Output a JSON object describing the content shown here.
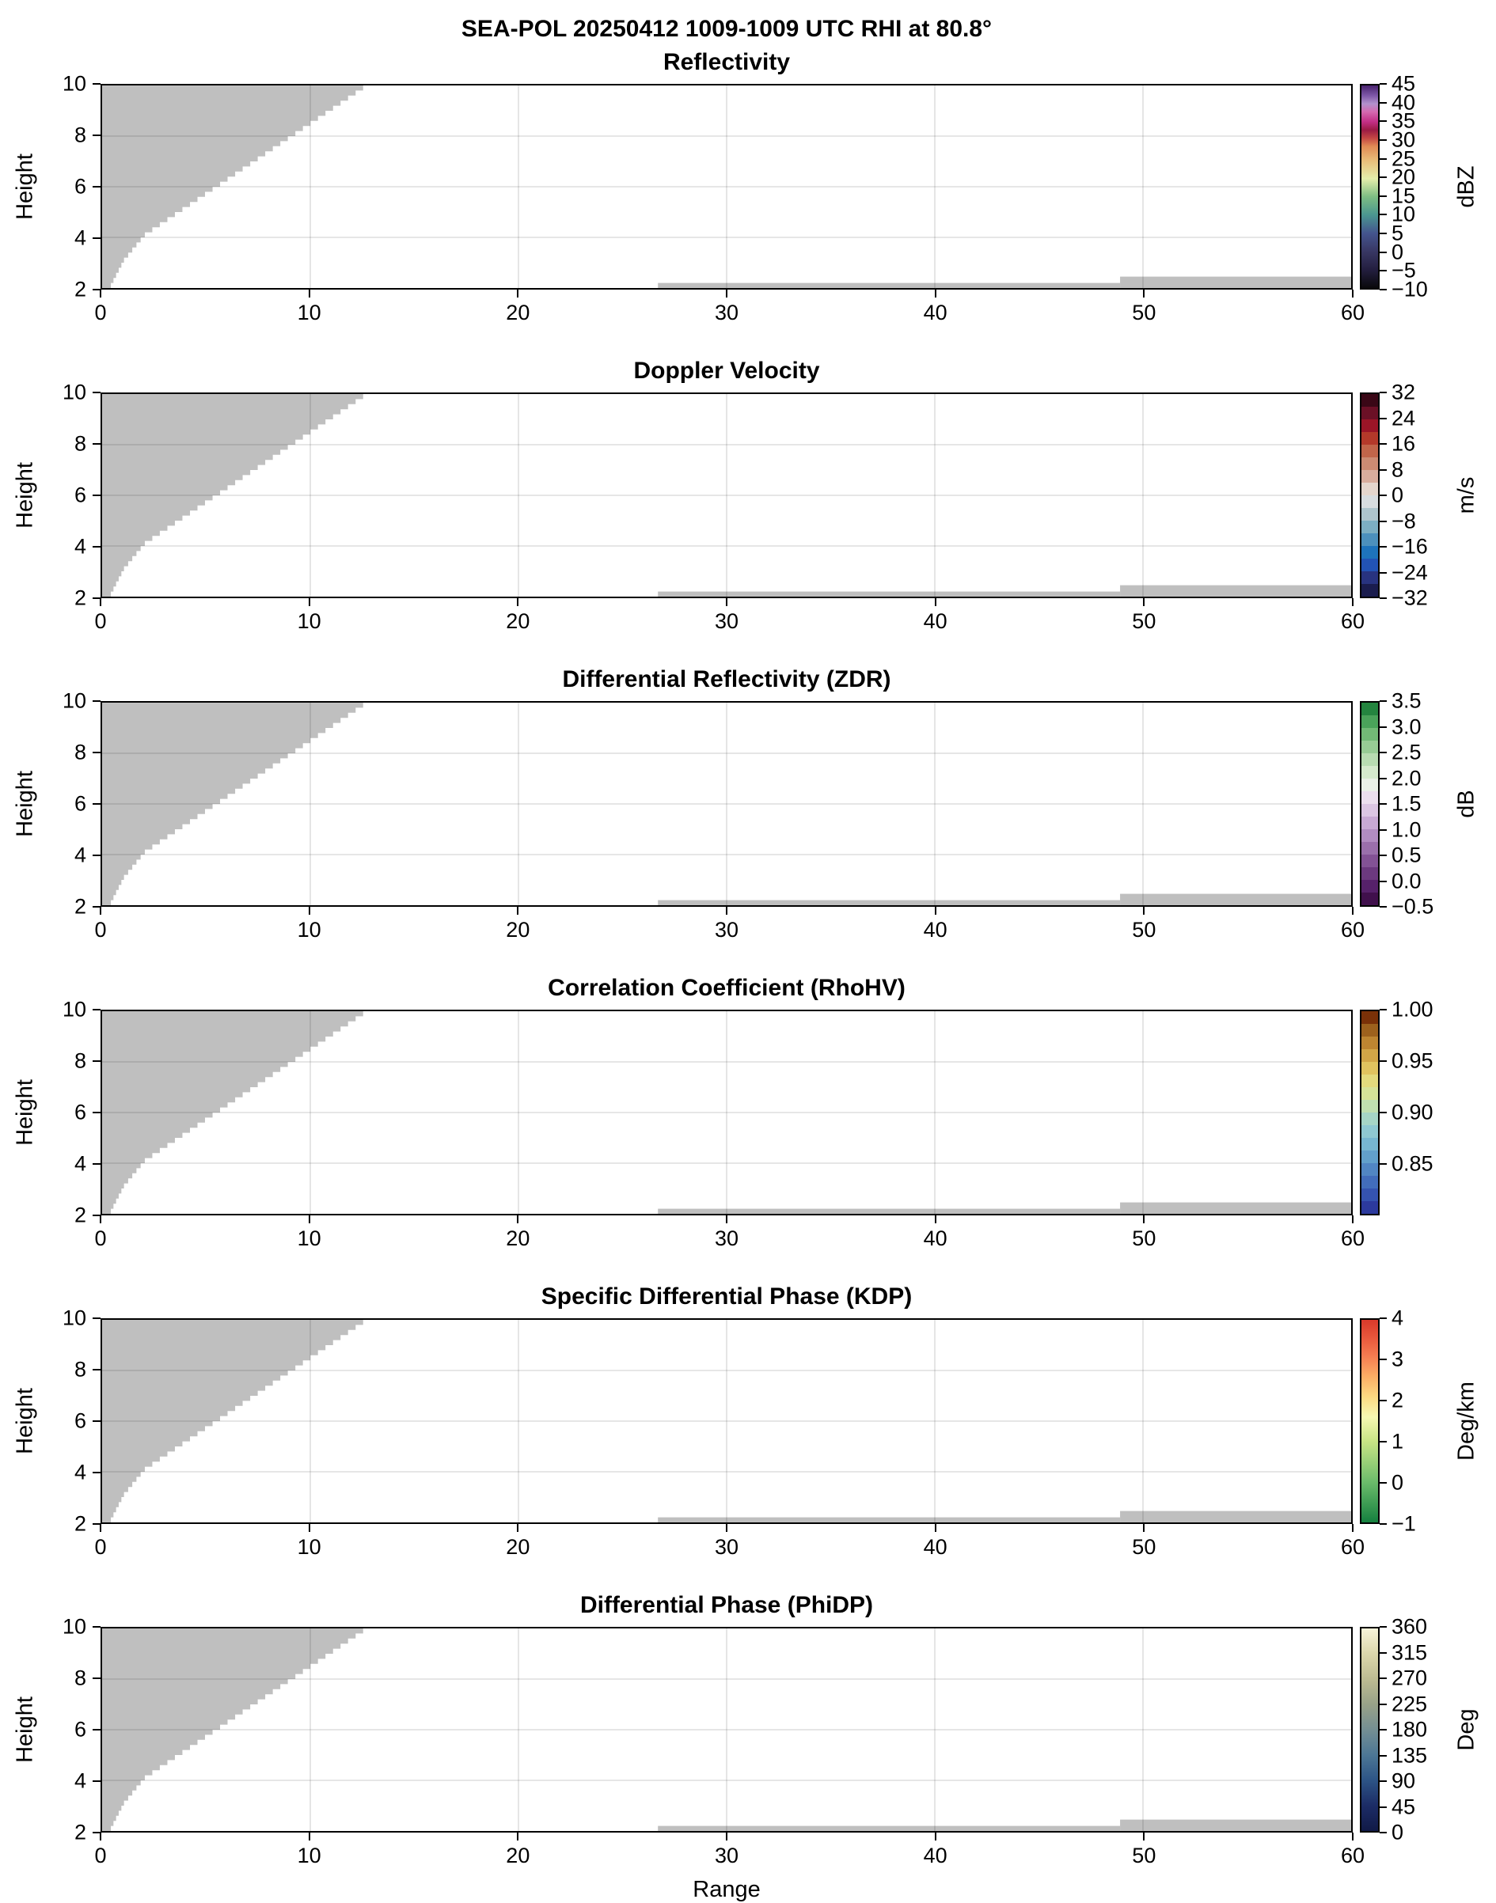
{
  "chart_data": {
    "type": "heatmap",
    "title": "SEA-POL 20250412 1009-1009 UTC RHI at 80.8°",
    "xlabel": "Range",
    "ylabel": "Height",
    "x_range": [
      0,
      60
    ],
    "y_range": [
      2,
      10
    ],
    "x_ticks": [
      "0",
      "10",
      "20",
      "30",
      "40",
      "50",
      "60"
    ],
    "x_tick_values": [
      0,
      10,
      20,
      30,
      40,
      50,
      60
    ],
    "y_ticks": [
      "2",
      "4",
      "6",
      "8",
      "10"
    ],
    "y_tick_values": [
      2,
      4,
      6,
      8,
      10
    ],
    "grid_x_values": [
      10,
      20,
      30,
      40,
      50
    ],
    "grid_y_values": [
      4,
      6,
      8
    ],
    "note": "Six-panel RHI display; all panels show only a gray no-data mask (stepped wedge from x=0..12.9 rising from height 2 to 10, plus low strips near height 2 from x=26.7-48.9 and x=48.9-60). No echo values plotted.",
    "mask": {
      "color": "#bfbfbf",
      "wedge_boundary_anchors": [
        [
          0.42,
          2.0
        ],
        [
          1.05,
          3.0
        ],
        [
          2.05,
          4.0
        ],
        [
          12.9,
          10.0
        ]
      ],
      "wedge_step_h": 0.2,
      "strips": [
        {
          "x0": 26.7,
          "h0": 2.0,
          "x1": 48.9,
          "h1": 2.2
        },
        {
          "x0": 48.9,
          "h0": 2.0,
          "x1": 60.0,
          "h1": 2.45
        }
      ]
    },
    "panels": [
      {
        "title": "Reflectivity",
        "unit": "dBZ",
        "cbar_min": -10,
        "cbar_max": 45,
        "tick_values": [
          -10,
          -5,
          0,
          5,
          10,
          15,
          20,
          25,
          30,
          35,
          40,
          45
        ],
        "tick_labels": [
          "−10",
          "−5",
          "0",
          "5",
          "10",
          "15",
          "20",
          "25",
          "30",
          "35",
          "40",
          "45"
        ],
        "gradient": {
          "style": "smooth",
          "stops": [
            [
              0,
              "#09090b"
            ],
            [
              9,
              "#231e3f"
            ],
            [
              18,
              "#383763"
            ],
            [
              27,
              "#44548e"
            ],
            [
              36,
              "#4a9690"
            ],
            [
              45,
              "#7dbd83"
            ],
            [
              54,
              "#e4eeab"
            ],
            [
              63,
              "#e9bd79"
            ],
            [
              70,
              "#e08a55"
            ],
            [
              74,
              "#c44744"
            ],
            [
              78,
              "#9c1b45"
            ],
            [
              82,
              "#c22e85"
            ],
            [
              87,
              "#d56ab0"
            ],
            [
              91,
              "#b291cc"
            ],
            [
              95,
              "#7e57a8"
            ],
            [
              100,
              "#49236e"
            ]
          ]
        }
      },
      {
        "title": "Doppler Velocity",
        "unit": "m/s",
        "cbar_min": -32,
        "cbar_max": 32,
        "tick_values": [
          -32,
          -24,
          -16,
          -8,
          0,
          8,
          16,
          24,
          32
        ],
        "tick_labels": [
          "−32",
          "−24",
          "−16",
          "−8",
          "0",
          "8",
          "16",
          "24",
          "32"
        ],
        "gradient": {
          "style": "bands",
          "colors": [
            "#1a1c4e",
            "#283380",
            "#2253b5",
            "#1e73bc",
            "#4c90bd",
            "#7caec3",
            "#aec5cd",
            "#d8dde0",
            "#e5d6cd",
            "#d9ad9d",
            "#cc8b73",
            "#c1654a",
            "#b4392a",
            "#9b1527",
            "#6b1026",
            "#3a0716"
          ]
        }
      },
      {
        "title": "Differential Reflectivity (ZDR)",
        "unit": "dB",
        "cbar_min": -0.5,
        "cbar_max": 3.5,
        "tick_values": [
          -0.5,
          0.0,
          0.5,
          1.0,
          1.5,
          2.0,
          2.5,
          3.0,
          3.5
        ],
        "tick_labels": [
          "−0.5",
          "0.0",
          "0.5",
          "1.0",
          "1.5",
          "2.0",
          "2.5",
          "3.0",
          "3.5"
        ],
        "gradient": {
          "style": "bands",
          "colors": [
            "#40104c",
            "#56216a",
            "#6c397f",
            "#835295",
            "#9a6fab",
            "#b18cc1",
            "#c8a9d4",
            "#dcc6e3",
            "#ecdfee",
            "#eaf0e7",
            "#d5e9cd",
            "#b8dcb2",
            "#97cc95",
            "#72ba76",
            "#4aa35a",
            "#24853f"
          ]
        }
      },
      {
        "title": "Correlation Coefficient (RhoHV)",
        "unit": "",
        "cbar_min": 0.8,
        "cbar_max": 1.0,
        "tick_values": [
          0.85,
          0.9,
          0.95,
          1.0
        ],
        "tick_labels": [
          "0.85",
          "0.90",
          "0.95",
          "1.00"
        ],
        "gradient": {
          "style": "bands",
          "colors": [
            "#2c3a9d",
            "#3553b0",
            "#426dbb",
            "#5186c3",
            "#62a0cb",
            "#77b6d1",
            "#8fc8d2",
            "#a6d5c6",
            "#c0dfb0",
            "#d6e298",
            "#e3da7d",
            "#e0c35f",
            "#d2a647",
            "#bd8531",
            "#9d611d",
            "#7a3108"
          ]
        }
      },
      {
        "title": "Specific Differential Phase (KDP)",
        "unit": "Deg/km",
        "cbar_min": -1,
        "cbar_max": 4,
        "tick_values": [
          -1,
          0,
          1,
          2,
          3,
          4
        ],
        "tick_labels": [
          "−1",
          "0",
          "1",
          "2",
          "3",
          "4"
        ],
        "gradient": {
          "style": "smooth",
          "stops": [
            [
              0,
              "#15803f"
            ],
            [
              20,
              "#6cbc6b"
            ],
            [
              40,
              "#c8e585"
            ],
            [
              52,
              "#f6f8b2"
            ],
            [
              62,
              "#fdda82"
            ],
            [
              72,
              "#fcae65"
            ],
            [
              82,
              "#f67d51"
            ],
            [
              92,
              "#e7543a"
            ],
            [
              100,
              "#d93a2b"
            ]
          ]
        }
      },
      {
        "title": "Differential Phase (PhiDP)",
        "unit": "Deg",
        "cbar_min": 0,
        "cbar_max": 360,
        "tick_values": [
          0,
          45,
          90,
          135,
          180,
          225,
          270,
          315,
          360
        ],
        "tick_labels": [
          "0",
          "45",
          "90",
          "135",
          "180",
          "225",
          "270",
          "315",
          "360"
        ],
        "gradient": {
          "style": "smooth",
          "stops": [
            [
              0,
              "#111a47"
            ],
            [
              12.5,
              "#1c2c66"
            ],
            [
              25,
              "#2d5486"
            ],
            [
              37.5,
              "#4d7795"
            ],
            [
              50,
              "#748f93"
            ],
            [
              62.5,
              "#98a288"
            ],
            [
              75,
              "#bdbc92"
            ],
            [
              87.5,
              "#dcd7ac"
            ],
            [
              100,
              "#f7f3da"
            ]
          ]
        }
      }
    ]
  }
}
